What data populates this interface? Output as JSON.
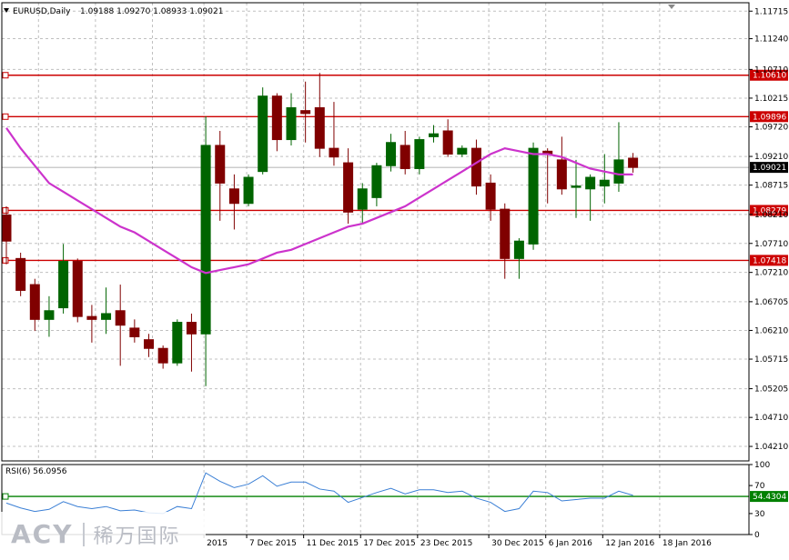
{
  "header": {
    "symbol": "EURUSD,Daily",
    "ohlc": "1.09188 1.09270 1.08933 1.09021"
  },
  "price_axis": {
    "ticks": [
      "1.11715",
      "1.11240",
      "1.10710",
      "1.10215",
      "1.09720",
      "1.09210",
      "1.08715",
      "1.08210",
      "1.07710",
      "1.07210",
      "1.06705",
      "1.06210",
      "1.05715",
      "1.05205",
      "1.04710",
      "1.04210"
    ]
  },
  "levels": [
    {
      "value": 1.1061,
      "label": "1.10610",
      "color": "#cc0000"
    },
    {
      "value": 1.09896,
      "label": "1.09896",
      "color": "#cc0000"
    },
    {
      "value": 1.08279,
      "label": "1.08279",
      "color": "#cc0000"
    },
    {
      "value": 1.07418,
      "label": "1.07418",
      "color": "#cc0000"
    }
  ],
  "current_price": {
    "value": 1.09021,
    "label": "1.09021"
  },
  "rsi_panel": {
    "title": "RSI(6) 56.0956",
    "ticks": [
      "100",
      "70",
      "30",
      "0"
    ],
    "level": {
      "value": 54.4304,
      "label": "54.4304",
      "color": "#008000"
    }
  },
  "date_axis": {
    "labels": [
      "2015",
      "7 Dec 2015",
      "11 Dec 2015",
      "17 Dec 2015",
      "23 Dec 2015",
      "30 Dec 2015",
      "6 Jan 2016",
      "12 Jan 2016",
      "18 Jan 2016"
    ]
  },
  "watermark": {
    "latin": "ACY",
    "chinese": "稀万国际"
  },
  "colors": {
    "bull": "#006400",
    "bear": "#800000",
    "ma": "#cc33cc",
    "rsi": "#3a7fd5",
    "grid": "#c0c0c0"
  },
  "chart_data": {
    "type": "candlestick",
    "ylim": [
      1.0396,
      1.1186
    ],
    "rsi_ylim": [
      0,
      100
    ],
    "grid": true,
    "candles": [
      {
        "o": 1.082,
        "h": 1.0835,
        "l": 1.0735,
        "c": 1.0775
      },
      {
        "o": 1.0745,
        "h": 1.0755,
        "l": 1.068,
        "c": 1.069
      },
      {
        "o": 1.07,
        "h": 1.071,
        "l": 1.062,
        "c": 1.064
      },
      {
        "o": 1.064,
        "h": 1.068,
        "l": 1.061,
        "c": 1.0655
      },
      {
        "o": 1.066,
        "h": 1.077,
        "l": 1.065,
        "c": 1.074
      },
      {
        "o": 1.074,
        "h": 1.0745,
        "l": 1.0635,
        "c": 1.0645
      },
      {
        "o": 1.0645,
        "h": 1.0665,
        "l": 1.06,
        "c": 1.064
      },
      {
        "o": 1.064,
        "h": 1.0695,
        "l": 1.0615,
        "c": 1.065
      },
      {
        "o": 1.0655,
        "h": 1.07,
        "l": 1.056,
        "c": 1.063
      },
      {
        "o": 1.0625,
        "h": 1.064,
        "l": 1.06,
        "c": 1.061
      },
      {
        "o": 1.0605,
        "h": 1.0615,
        "l": 1.0575,
        "c": 1.059
      },
      {
        "o": 1.059,
        "h": 1.0595,
        "l": 1.0555,
        "c": 1.0565
      },
      {
        "o": 1.0565,
        "h": 1.064,
        "l": 1.056,
        "c": 1.0635
      },
      {
        "o": 1.0635,
        "h": 1.065,
        "l": 1.055,
        "c": 1.0615
      },
      {
        "o": 1.0615,
        "h": 1.099,
        "l": 1.0525,
        "c": 1.094
      },
      {
        "o": 1.094,
        "h": 1.0965,
        "l": 1.081,
        "c": 1.0875
      },
      {
        "o": 1.0865,
        "h": 1.089,
        "l": 1.0795,
        "c": 1.084
      },
      {
        "o": 1.084,
        "h": 1.089,
        "l": 1.0835,
        "c": 1.0885
      },
      {
        "o": 1.0895,
        "h": 1.104,
        "l": 1.089,
        "c": 1.1025
      },
      {
        "o": 1.1025,
        "h": 1.103,
        "l": 1.093,
        "c": 1.095
      },
      {
        "o": 1.095,
        "h": 1.103,
        "l": 1.094,
        "c": 1.1005
      },
      {
        "o": 1.1,
        "h": 1.105,
        "l": 1.0945,
        "c": 1.0995
      },
      {
        "o": 1.1005,
        "h": 1.1065,
        "l": 1.092,
        "c": 1.0935
      },
      {
        "o": 1.0935,
        "h": 1.1015,
        "l": 1.0905,
        "c": 1.092
      },
      {
        "o": 1.091,
        "h": 1.0935,
        "l": 1.0805,
        "c": 1.0825
      },
      {
        "o": 1.083,
        "h": 1.0875,
        "l": 1.0805,
        "c": 1.0865
      },
      {
        "o": 1.085,
        "h": 1.091,
        "l": 1.0835,
        "c": 1.0905
      },
      {
        "o": 1.0905,
        "h": 1.096,
        "l": 1.0895,
        "c": 1.0945
      },
      {
        "o": 1.094,
        "h": 1.0965,
        "l": 1.089,
        "c": 1.09
      },
      {
        "o": 1.09,
        "h": 1.0955,
        "l": 1.089,
        "c": 1.095
      },
      {
        "o": 1.0955,
        "h": 1.0975,
        "l": 1.0945,
        "c": 1.096
      },
      {
        "o": 1.0965,
        "h": 1.0985,
        "l": 1.092,
        "c": 1.0925
      },
      {
        "o": 1.0925,
        "h": 1.094,
        "l": 1.092,
        "c": 1.0935
      },
      {
        "o": 1.0935,
        "h": 1.095,
        "l": 1.0855,
        "c": 1.087
      },
      {
        "o": 1.0875,
        "h": 1.089,
        "l": 1.081,
        "c": 1.083
      },
      {
        "o": 1.083,
        "h": 1.084,
        "l": 1.071,
        "c": 1.0745
      },
      {
        "o": 1.0745,
        "h": 1.078,
        "l": 1.071,
        "c": 1.0775
      },
      {
        "o": 1.077,
        "h": 1.0945,
        "l": 1.076,
        "c": 1.0935
      },
      {
        "o": 1.093,
        "h": 1.0935,
        "l": 1.084,
        "c": 1.0925
      },
      {
        "o": 1.0915,
        "h": 1.0955,
        "l": 1.0855,
        "c": 1.0865
      },
      {
        "o": 1.087,
        "h": 1.0915,
        "l": 1.0815,
        "c": 1.087
      },
      {
        "o": 1.0865,
        "h": 1.089,
        "l": 1.081,
        "c": 1.0885
      },
      {
        "o": 1.087,
        "h": 1.0925,
        "l": 1.084,
        "c": 1.088
      },
      {
        "o": 1.0875,
        "h": 1.098,
        "l": 1.086,
        "c": 1.0915
      },
      {
        "o": 1.0918,
        "h": 1.0927,
        "l": 1.0893,
        "c": 1.0902
      }
    ],
    "ma": [
      1.097,
      1.0935,
      1.0905,
      1.0875,
      1.086,
      1.0845,
      1.083,
      1.0815,
      1.08,
      1.079,
      1.0775,
      1.076,
      1.0745,
      1.073,
      1.072,
      1.0725,
      1.073,
      1.0735,
      1.0745,
      1.0755,
      1.076,
      1.077,
      1.078,
      1.079,
      1.08,
      1.0805,
      1.0815,
      1.0825,
      1.0835,
      1.085,
      1.0865,
      1.088,
      1.0895,
      1.091,
      1.0925,
      1.0935,
      1.093,
      1.0925,
      1.0925,
      1.092,
      1.091,
      1.09,
      1.0895,
      1.089,
      1.089
    ],
    "rsi": [
      45,
      38,
      33,
      36,
      47,
      40,
      37,
      40,
      34,
      35,
      31,
      30,
      40,
      37,
      88,
      76,
      67,
      72,
      84,
      69,
      75,
      75,
      65,
      62,
      46,
      53,
      60,
      66,
      58,
      64,
      64,
      60,
      62,
      52,
      46,
      33,
      37,
      62,
      60,
      48,
      50,
      52,
      52,
      62,
      56
    ]
  }
}
